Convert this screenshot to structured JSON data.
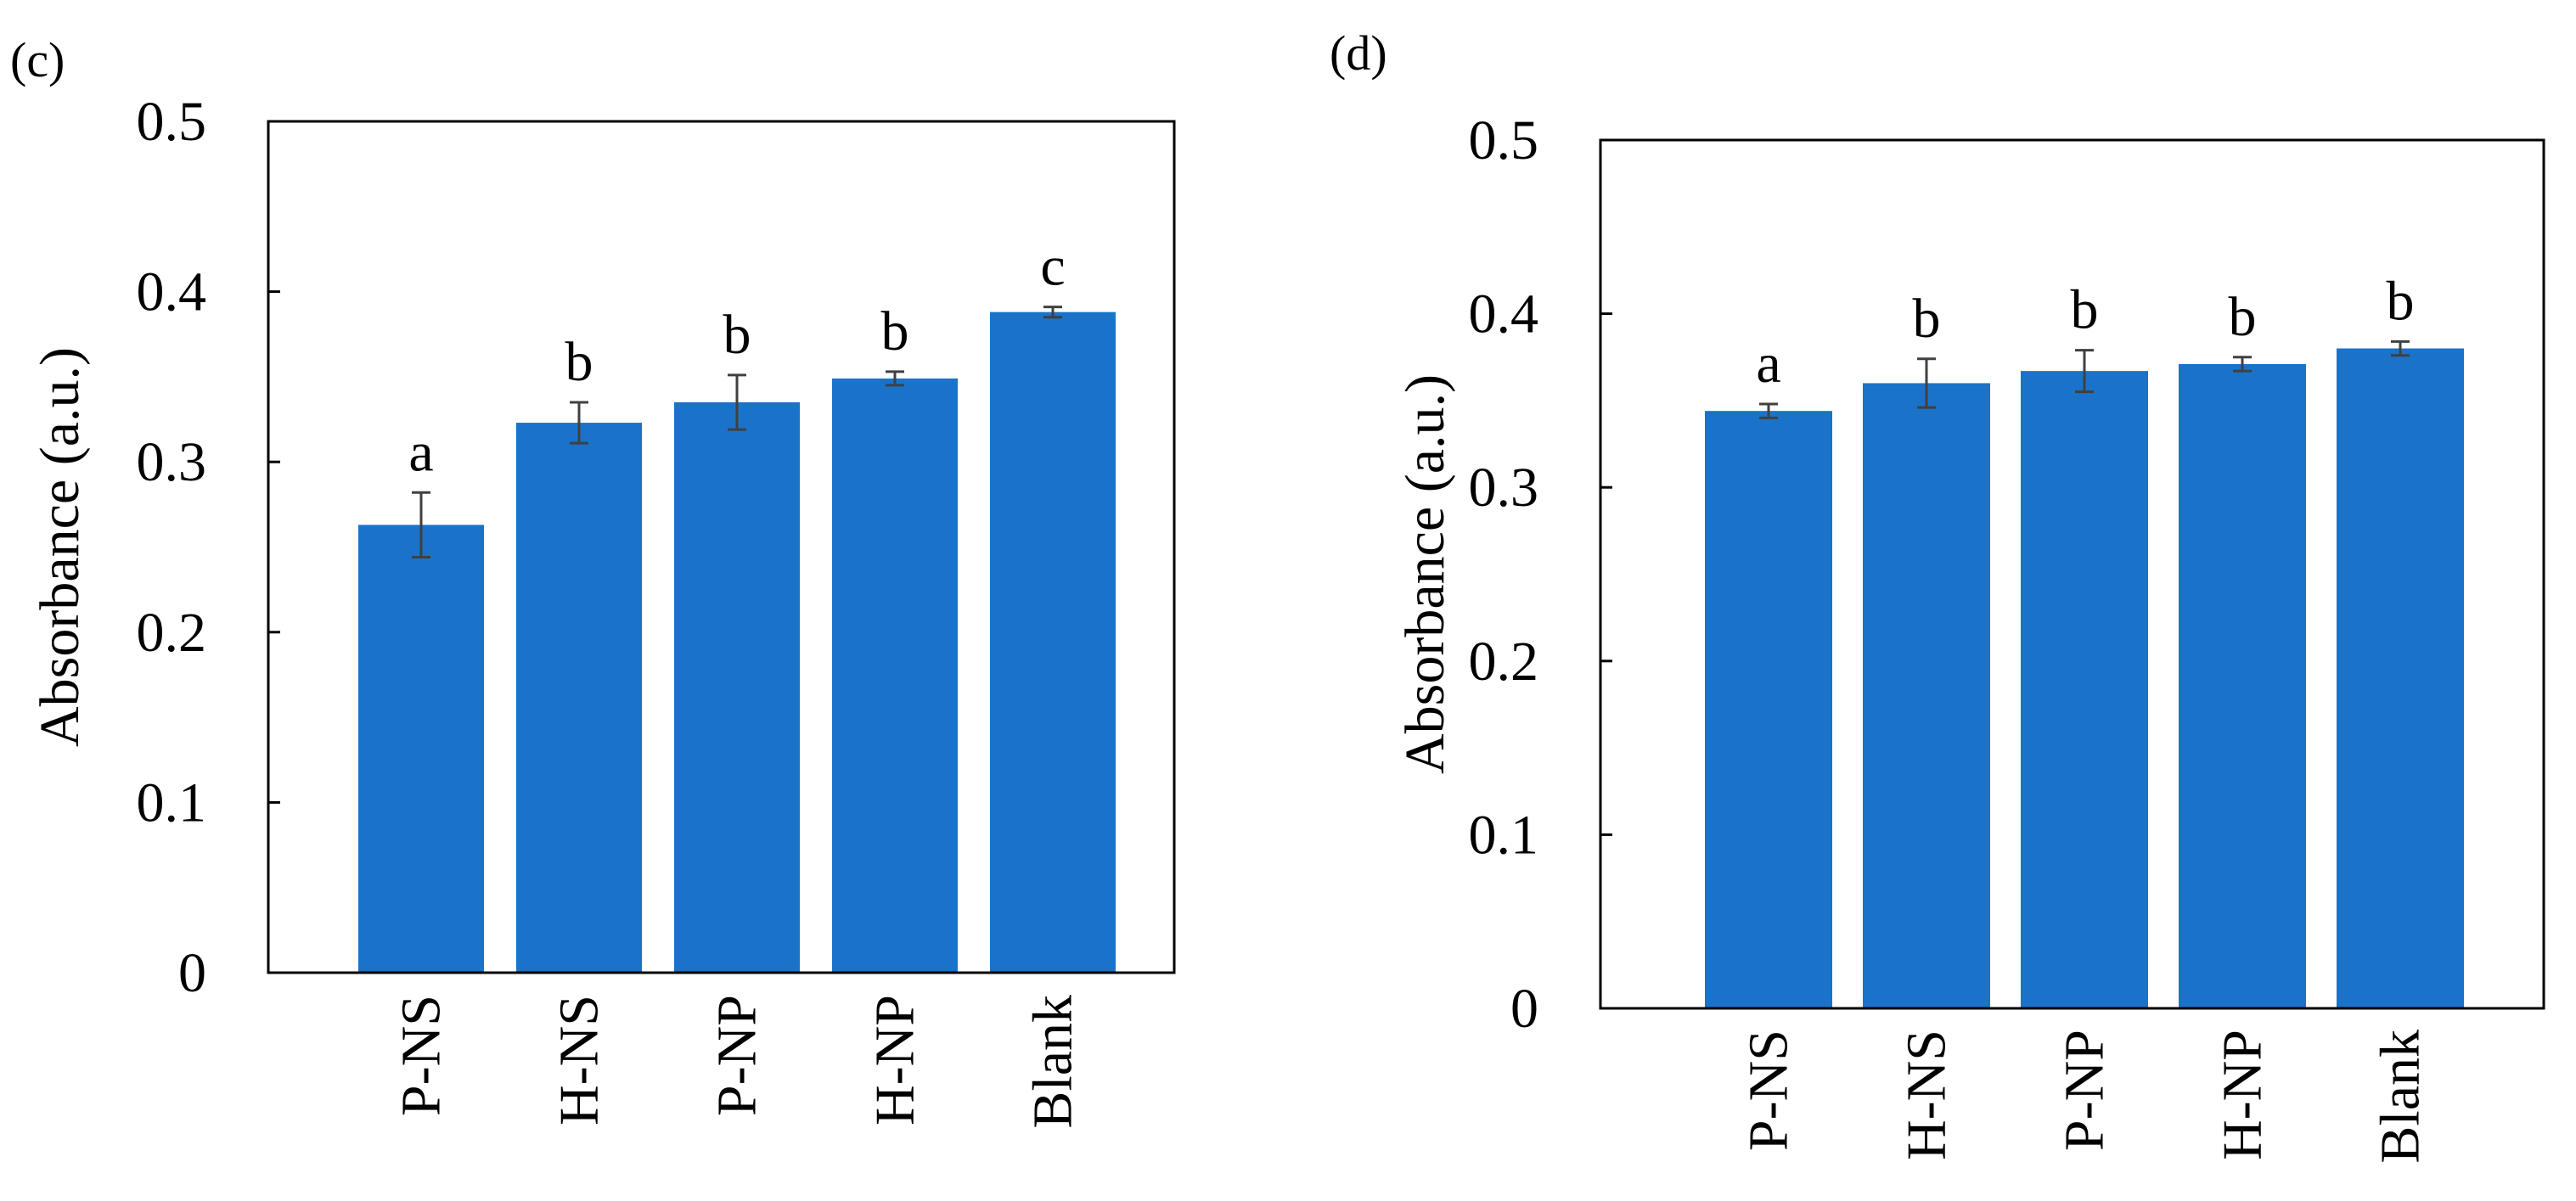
{
  "chart_data": [
    {
      "panel_label": "(c)",
      "type": "bar",
      "categories": [
        "P-NS",
        "H-NS",
        "P-NP",
        "H-NP",
        "Blank"
      ],
      "values": [
        0.263,
        0.323,
        0.335,
        0.349,
        0.388
      ],
      "errors": [
        0.019,
        0.012,
        0.016,
        0.004,
        0.003
      ],
      "significance": [
        "a",
        "b",
        "b",
        "b",
        "c"
      ],
      "ylabel": "Absorbance (a.u.)",
      "xlabel": "",
      "ylim": [
        0,
        0.5
      ],
      "yticks": [
        "0",
        "0.1",
        "0.2",
        "0.3",
        "0.4",
        "0.5"
      ],
      "bar_color": "#1a73c9",
      "error_color": "#404040"
    },
    {
      "panel_label": "(d)",
      "type": "bar",
      "categories": [
        "P-NS",
        "H-NS",
        "P-NP",
        "H-NP",
        "Blank"
      ],
      "values": [
        0.344,
        0.36,
        0.367,
        0.371,
        0.38
      ],
      "errors": [
        0.004,
        0.014,
        0.012,
        0.004,
        0.004
      ],
      "significance": [
        "a",
        "b",
        "b",
        "b",
        "b"
      ],
      "ylabel": "Absorbance (a.u.)",
      "xlabel": "",
      "ylim": [
        0,
        0.5
      ],
      "yticks": [
        "0",
        "0.1",
        "0.2",
        "0.3",
        "0.4",
        "0.5"
      ],
      "bar_color": "#1a73c9",
      "error_color": "#404040"
    }
  ]
}
